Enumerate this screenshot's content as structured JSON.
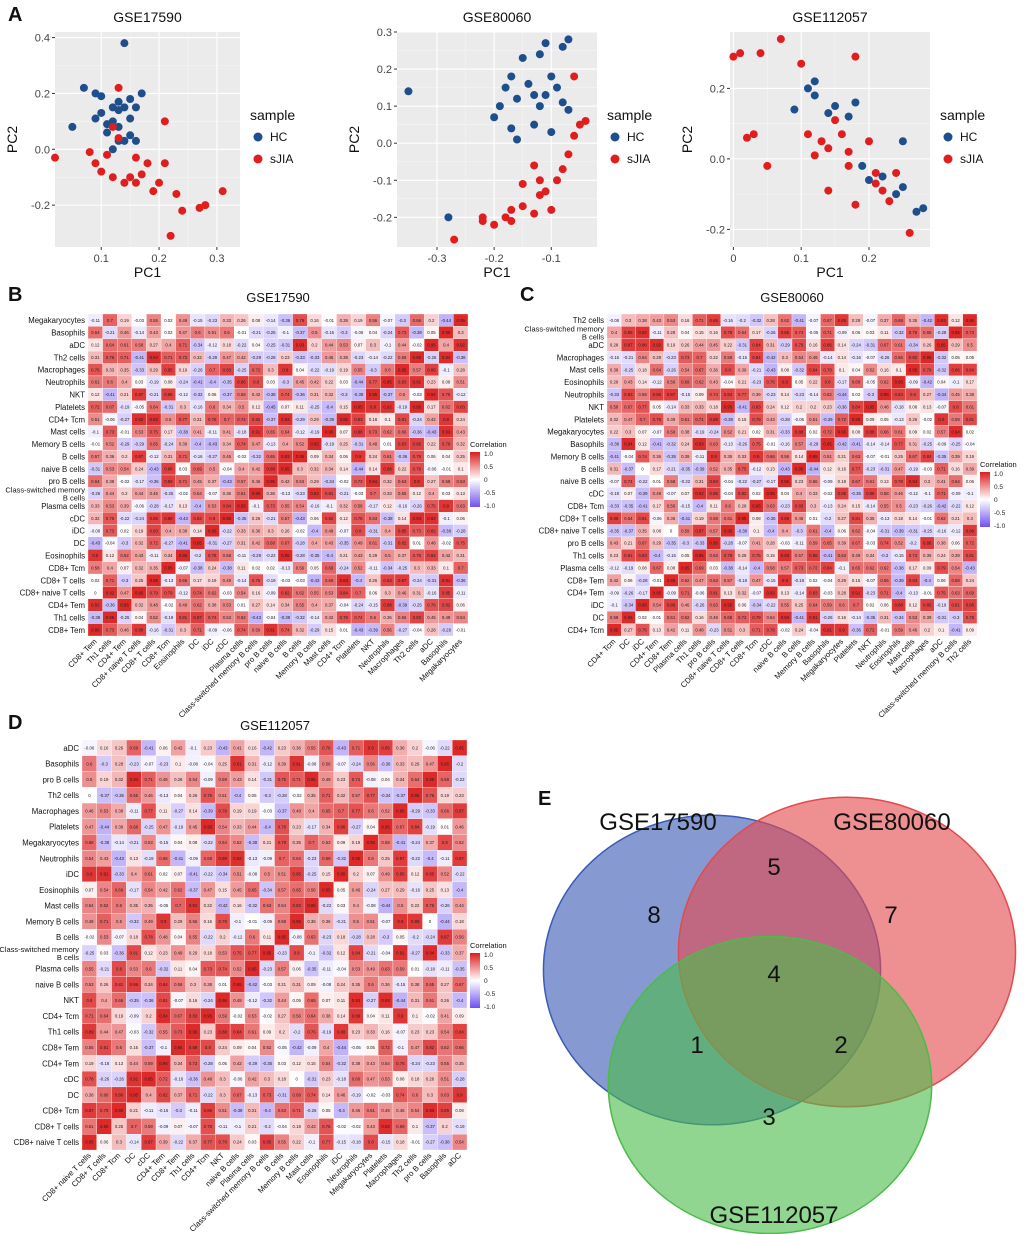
{
  "panel_labels": [
    "A",
    "B",
    "C",
    "D",
    "E"
  ],
  "chart_data": [
    {
      "type": "scatter",
      "title": "GSE17590",
      "xlabel": "PC1",
      "ylabel": "PC2",
      "xlim": [
        0.02,
        0.34
      ],
      "ylim": [
        -0.35,
        0.42
      ],
      "xticks": [
        0.1,
        0.2,
        0.3
      ],
      "yticks": [
        -0.2,
        0.0,
        0.2,
        0.4
      ],
      "legend": {
        "title": "sample",
        "entries": [
          "HC",
          "sJIA"
        ]
      },
      "colors": {
        "HC": "#1f4e8c",
        "sJIA": "#e01e1e"
      },
      "series": [
        {
          "name": "HC",
          "points": [
            [
              0.11,
              0.09
            ],
            [
              0.14,
              0.38
            ],
            [
              0.07,
              0.22
            ],
            [
              0.05,
              0.08
            ],
            [
              0.09,
              0.2
            ],
            [
              0.1,
              0.13
            ],
            [
              0.12,
              0.15
            ],
            [
              0.13,
              0.14
            ],
            [
              0.13,
              0.17
            ],
            [
              0.14,
              0.15
            ],
            [
              0.15,
              0.18
            ],
            [
              0.16,
              0.15
            ],
            [
              0.17,
              0.2
            ],
            [
              0.12,
              0.1
            ],
            [
              0.13,
              0.08
            ],
            [
              0.11,
              0.06
            ],
            [
              0.14,
              0.03
            ],
            [
              0.15,
              0.05
            ],
            [
              0.12,
              0.0
            ],
            [
              0.09,
              0.11
            ],
            [
              0.1,
              0.19
            ],
            [
              0.16,
              0.03
            ],
            [
              0.13,
              0.03
            ],
            [
              0.15,
              0.11
            ]
          ]
        },
        {
          "name": "sJIA",
          "points": [
            [
              0.02,
              -0.03
            ],
            [
              0.08,
              -0.01
            ],
            [
              0.13,
              0.22
            ],
            [
              0.11,
              -0.02
            ],
            [
              0.13,
              0.04
            ],
            [
              0.09,
              -0.05
            ],
            [
              0.1,
              -0.08
            ],
            [
              0.16,
              -0.03
            ],
            [
              0.18,
              -0.05
            ],
            [
              0.17,
              -0.09
            ],
            [
              0.15,
              -0.1
            ],
            [
              0.14,
              -0.12
            ],
            [
              0.16,
              -0.12
            ],
            [
              0.12,
              -0.1
            ],
            [
              0.21,
              0.1
            ],
            [
              0.21,
              -0.05
            ],
            [
              0.2,
              -0.12
            ],
            [
              0.19,
              -0.15
            ],
            [
              0.23,
              -0.16
            ],
            [
              0.24,
              -0.22
            ],
            [
              0.28,
              -0.2
            ],
            [
              0.27,
              -0.21
            ],
            [
              0.31,
              -0.15
            ],
            [
              0.22,
              -0.31
            ],
            [
              0.12,
              0.08
            ]
          ]
        }
      ]
    },
    {
      "type": "scatter",
      "title": "GSE80060",
      "xlabel": "PC1",
      "ylabel": "PC2",
      "xlim": [
        -0.37,
        -0.02
      ],
      "ylim": [
        -0.28,
        0.3
      ],
      "xticks": [
        -0.3,
        -0.2,
        -0.1
      ],
      "yticks": [
        -0.2,
        -0.1,
        0.0,
        0.1,
        0.2,
        0.3
      ],
      "legend": {
        "title": "sample",
        "entries": [
          "HC",
          "sJIA"
        ]
      },
      "colors": {
        "HC": "#1f4e8c",
        "sJIA": "#e01e1e"
      },
      "series": [
        {
          "name": "HC",
          "points": [
            [
              -0.35,
              0.14
            ],
            [
              -0.28,
              -0.2
            ],
            [
              -0.11,
              0.27
            ],
            [
              -0.07,
              0.28
            ],
            [
              -0.12,
              0.24
            ],
            [
              -0.15,
              0.23
            ],
            [
              -0.17,
              0.18
            ],
            [
              -0.18,
              0.15
            ],
            [
              -0.16,
              0.12
            ],
            [
              -0.14,
              0.16
            ],
            [
              -0.13,
              0.13
            ],
            [
              -0.1,
              0.18
            ],
            [
              -0.09,
              0.15
            ],
            [
              -0.08,
              0.26
            ],
            [
              -0.19,
              0.1
            ],
            [
              -0.12,
              0.1
            ],
            [
              -0.11,
              0.13
            ],
            [
              -0.2,
              0.07
            ],
            [
              -0.13,
              0.05
            ],
            [
              -0.17,
              0.04
            ],
            [
              -0.16,
              0.01
            ],
            [
              -0.1,
              0.03
            ],
            [
              -0.08,
              0.11
            ],
            [
              -0.07,
              0.09
            ]
          ]
        },
        {
          "name": "sJIA",
          "points": [
            [
              -0.27,
              -0.26
            ],
            [
              -0.22,
              -0.21
            ],
            [
              -0.2,
              -0.22
            ],
            [
              -0.18,
              -0.2
            ],
            [
              -0.17,
              -0.21
            ],
            [
              -0.15,
              -0.17
            ],
            [
              -0.13,
              -0.19
            ],
            [
              -0.12,
              -0.14
            ],
            [
              -0.11,
              -0.13
            ],
            [
              -0.1,
              -0.18
            ],
            [
              -0.09,
              -0.1
            ],
            [
              -0.08,
              -0.07
            ],
            [
              -0.12,
              -0.1
            ],
            [
              -0.07,
              -0.03
            ],
            [
              -0.06,
              0.02
            ],
            [
              -0.05,
              0.05
            ],
            [
              -0.04,
              0.06
            ],
            [
              -0.06,
              0.18
            ],
            [
              -0.13,
              -0.06
            ],
            [
              -0.15,
              -0.11
            ],
            [
              -0.17,
              -0.18
            ],
            [
              -0.22,
              -0.2
            ]
          ]
        }
      ]
    },
    {
      "type": "scatter",
      "title": "GSE112057",
      "xlabel": "PC1",
      "ylabel": "PC2",
      "xlim": [
        -0.005,
        0.29
      ],
      "ylim": [
        -0.25,
        0.36
      ],
      "xticks": [
        0.0,
        0.1,
        0.2
      ],
      "yticks": [
        -0.2,
        0.0,
        0.2
      ],
      "legend": {
        "title": "sample",
        "entries": [
          "HC",
          "sJIA"
        ]
      },
      "colors": {
        "HC": "#1f4e8c",
        "sJIA": "#e01e1e"
      },
      "series": [
        {
          "name": "HC",
          "points": [
            [
              0.09,
              0.14
            ],
            [
              0.11,
              0.2
            ],
            [
              0.12,
              0.18
            ],
            [
              0.12,
              0.22
            ],
            [
              0.15,
              0.15
            ],
            [
              0.17,
              0.12
            ],
            [
              0.18,
              0.16
            ],
            [
              0.14,
              0.13
            ],
            [
              0.19,
              -0.02
            ],
            [
              0.22,
              -0.05
            ],
            [
              0.24,
              -0.1
            ],
            [
              0.25,
              0.05
            ],
            [
              0.25,
              -0.08
            ],
            [
              0.27,
              -0.15
            ],
            [
              0.28,
              -0.14
            ],
            [
              0.2,
              -0.06
            ]
          ]
        },
        {
          "name": "sJIA",
          "points": [
            [
              0.0,
              0.29
            ],
            [
              0.01,
              0.3
            ],
            [
              0.04,
              0.3
            ],
            [
              0.07,
              0.34
            ],
            [
              0.02,
              0.06
            ],
            [
              0.03,
              0.07
            ],
            [
              0.05,
              -0.02
            ],
            [
              0.1,
              0.27
            ],
            [
              0.11,
              0.07
            ],
            [
              0.12,
              0.01
            ],
            [
              0.13,
              0.05
            ],
            [
              0.14,
              0.03
            ],
            [
              0.15,
              0.11
            ],
            [
              0.16,
              0.07
            ],
            [
              0.17,
              0.02
            ],
            [
              0.17,
              -0.02
            ],
            [
              0.18,
              0.29
            ],
            [
              0.2,
              0.05
            ],
            [
              0.21,
              -0.07
            ],
            [
              0.22,
              -0.09
            ],
            [
              0.23,
              -0.12
            ],
            [
              0.26,
              -0.21
            ],
            [
              0.14,
              -0.09
            ],
            [
              0.18,
              -0.13
            ],
            [
              0.21,
              -0.04
            ],
            [
              0.24,
              -0.04
            ]
          ]
        }
      ]
    },
    {
      "type": "heatmap",
      "title": "GSE17590",
      "legend_title": "Correlation",
      "legend_ticks": [
        "1.0",
        "0.5",
        "0",
        "-0.5",
        "-1.0"
      ],
      "rows": [
        "Megakaryocytes",
        "Basophils",
        "aDC",
        "Th2 cells",
        "Macrophages",
        "Neutrophils",
        "NKT",
        "Platelets",
        "CD4+ Tcm",
        "Mast cells",
        "Memory B cells",
        "B cells",
        "naive B cells",
        "pro B cells",
        "Class-switched memory B cells",
        "Plasma cells",
        "cDC",
        "iDC",
        "DC",
        "Eosinophils",
        "CD8+ Tcm",
        "CD8+ T cells",
        "CD8+ naive T cells",
        "CD4+ Tem",
        "Th1 cells",
        "CD8+ Tem"
      ],
      "columns": [
        "CD8+ Tem",
        "Th1 cells",
        "CD4+ Tem",
        "CD8+ naive T cells",
        "CD8+ T cells",
        "CD8+ Tcm",
        "Eosinophils",
        "DC",
        "iDC",
        "cDC",
        "Plasma cells",
        "Class-switched memory B cells",
        "pro B cells",
        "naive B cells",
        "B cells",
        "Memory B cells",
        "Mast cells",
        "CD4+ Tcm",
        "Platelets",
        "NKT",
        "Neutrophils",
        "Macrophages",
        "Th2 cells",
        "aDC",
        "Basophils",
        "Megakaryocytes"
      ],
      "seed": 17
    },
    {
      "type": "heatmap",
      "title": "GSE80060",
      "legend_title": "Correlation",
      "legend_ticks": [
        "1.0",
        "0.5",
        "0",
        "-0.5",
        "-1.0"
      ],
      "rows": [
        "Th2 cells",
        "Class-switched memory B cells",
        "aDC",
        "Macrophages",
        "Mast cells",
        "Eosinophils",
        "Neutrophils",
        "NKT",
        "Platelets",
        "Megakaryocytes",
        "Basophils",
        "Memory B cells",
        "B cells",
        "naive B cells",
        "cDC",
        "CD8+ Tcm",
        "CD8+ T cells",
        "CD8+ naive T cells",
        "pro B cells",
        "Th1 cells",
        "Plasma cells",
        "CD8+ Tem",
        "CD4+ Tem",
        "iDC",
        "DC",
        "CD4+ Tcm"
      ],
      "columns": [
        "CD4+ Tcm",
        "DC",
        "iDC",
        "CD4+ Tem",
        "CD8+ Tem",
        "Plasma cells",
        "Th1 cells",
        "pro B cells",
        "CD8+ naive T cells",
        "CD8+ T cells",
        "CD8+ Tcm",
        "cDC",
        "naive B cells",
        "B cells",
        "Memory B cells",
        "Basophils",
        "Megakaryocytes",
        "Platelets",
        "NKT",
        "Neutrophils",
        "Eosinophils",
        "Mast cells",
        "Macrophages",
        "aDC",
        "Class-switched memory B cells",
        "Th2 cells"
      ],
      "seed": 80
    },
    {
      "type": "heatmap",
      "title": "GSE112057",
      "legend_title": "Correlation",
      "legend_ticks": [
        "1.0",
        "0.5",
        "0",
        "-0.5",
        "-1.0"
      ],
      "rows": [
        "aDC",
        "Basophils",
        "pro B cells",
        "Th2 cells",
        "Macrophages",
        "Platelets",
        "Megakaryocytes",
        "Neutrophils",
        "iDC",
        "Eosinophils",
        "Mast cells",
        "Memory B cells",
        "B cells",
        "Class-switched memory B cells",
        "Plasma cells",
        "naive B cells",
        "NKT",
        "CD4+ Tcm",
        "Th1 cells",
        "CD8+ Tem",
        "CD4+ Tem",
        "cDC",
        "DC",
        "CD8+ Tcm",
        "CD8+ T cells",
        "CD8+ naive T cells"
      ],
      "columns": [
        "CD8+ naive T cells",
        "CD8+ T cells",
        "CD8+ Tcm",
        "DC",
        "cDC",
        "CD4+ Tem",
        "CD8+ Tem",
        "Th1 cells",
        "CD4+ Tcm",
        "NKT",
        "naive B cells",
        "Plasma cells",
        "Class-switched memory B cells",
        "B cells",
        "Memory B cells",
        "Mast cells",
        "Eosinophils",
        "iDC",
        "Neutrophils",
        "Megakaryocytes",
        "Platelets",
        "Macrophages",
        "Th2 cells",
        "pro B cells",
        "Basophils",
        "aDC"
      ],
      "seed": 112
    },
    {
      "type": "venn",
      "sets": [
        "GSE17590",
        "GSE80060",
        "GSE112057"
      ],
      "colors": {
        "GSE17590": "#3b5bb5",
        "GSE80060": "#e34a4f",
        "GSE112057": "#4cbb4c"
      },
      "regions": {
        "GSE17590_only": 8,
        "GSE80060_only": 7,
        "GSE112057_only": 3,
        "GSE17590_GSE80060": 5,
        "GSE17590_GSE112057": 1,
        "GSE80060_GSE112057": 2,
        "all_three": 4
      }
    }
  ]
}
